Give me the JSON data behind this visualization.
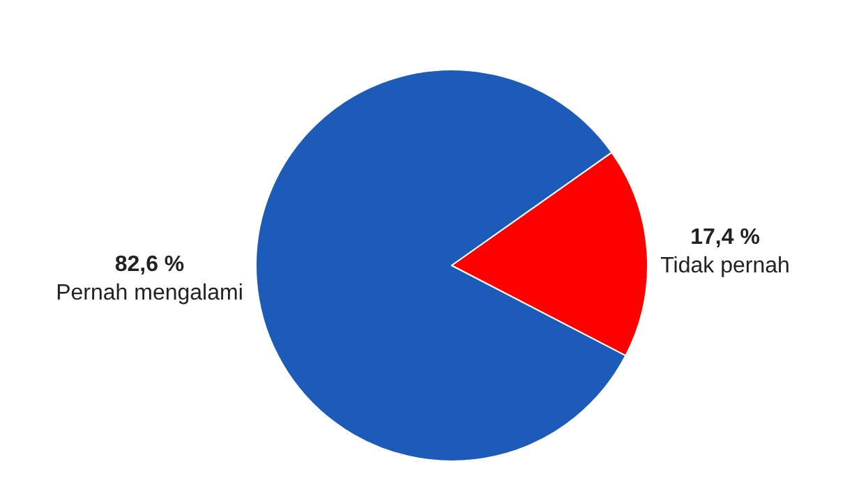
{
  "chart_data": {
    "type": "pie",
    "categories": [
      "Pernah mengalami",
      "Tidak pernah"
    ],
    "values": [
      82.6,
      17.4
    ],
    "colors": [
      "#1d5bb8",
      "#ff0000"
    ],
    "value_labels": [
      "82,6 %",
      "17,4 %"
    ],
    "legend": false
  }
}
